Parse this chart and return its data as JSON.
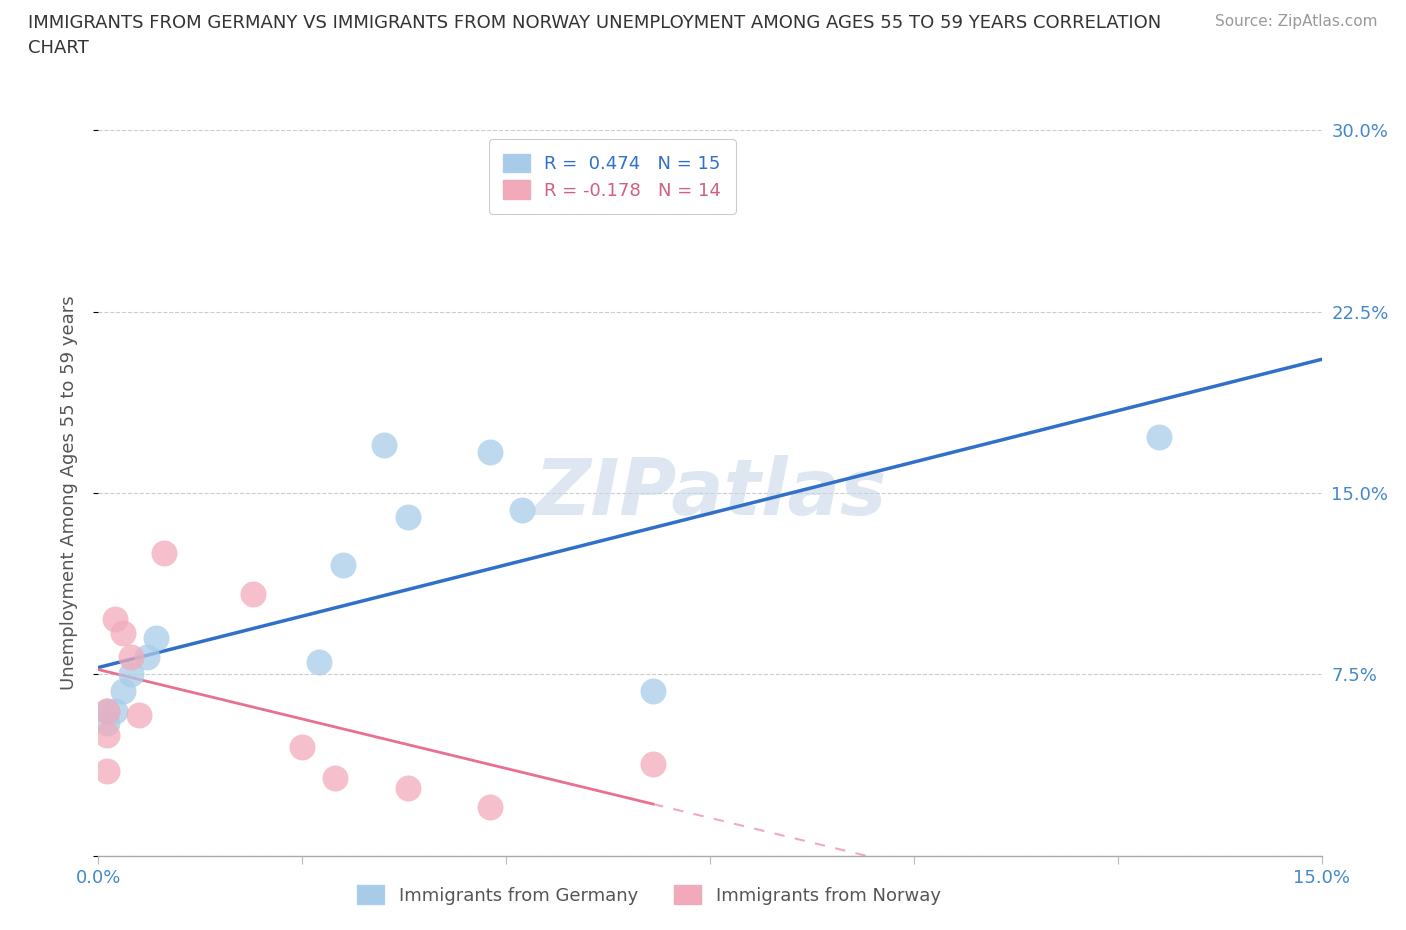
{
  "title_line1": "IMMIGRANTS FROM GERMANY VS IMMIGRANTS FROM NORWAY UNEMPLOYMENT AMONG AGES 55 TO 59 YEARS CORRELATION",
  "title_line2": "CHART",
  "source": "Source: ZipAtlas.com",
  "ylabel": "Unemployment Among Ages 55 to 59 years",
  "xlim": [
    0.0,
    0.15
  ],
  "ylim": [
    0.0,
    0.3
  ],
  "xticks": [
    0.0,
    0.025,
    0.05,
    0.075,
    0.1,
    0.125,
    0.15
  ],
  "yticks": [
    0.0,
    0.075,
    0.15,
    0.225,
    0.3
  ],
  "ytick_labels": [
    "",
    "7.5%",
    "15.0%",
    "22.5%",
    "30.0%"
  ],
  "xtick_labels": [
    "0.0%",
    "",
    "",
    "",
    "",
    "",
    "15.0%"
  ],
  "germany_x": [
    0.001,
    0.001,
    0.002,
    0.003,
    0.004,
    0.006,
    0.007,
    0.027,
    0.03,
    0.035,
    0.038,
    0.048,
    0.052,
    0.068,
    0.13
  ],
  "germany_y": [
    0.055,
    0.06,
    0.06,
    0.068,
    0.075,
    0.082,
    0.09,
    0.08,
    0.12,
    0.17,
    0.14,
    0.167,
    0.143,
    0.068,
    0.173
  ],
  "norway_x": [
    0.001,
    0.001,
    0.001,
    0.002,
    0.003,
    0.004,
    0.005,
    0.008,
    0.019,
    0.025,
    0.029,
    0.038,
    0.048,
    0.068
  ],
  "norway_y": [
    0.06,
    0.05,
    0.035,
    0.098,
    0.092,
    0.082,
    0.058,
    0.125,
    0.108,
    0.045,
    0.032,
    0.028,
    0.02,
    0.038
  ],
  "germany_R": 0.474,
  "germany_N": 15,
  "norway_R": -0.178,
  "norway_N": 14,
  "germany_color": "#a8cce8",
  "norway_color": "#f2aabb",
  "germany_line_color": "#3070c8",
  "norway_line_color": "#e87090",
  "norway_legend_text_color": "#d06080",
  "germany_legend_text_color": "#3070c8",
  "watermark": "ZIPatlas",
  "watermark_color": "#c8d8e8",
  "background_color": "#ffffff",
  "grid_color": "#cccccc",
  "tick_label_color": "#4488cc",
  "ylabel_color": "#555555",
  "title_color": "#333333"
}
